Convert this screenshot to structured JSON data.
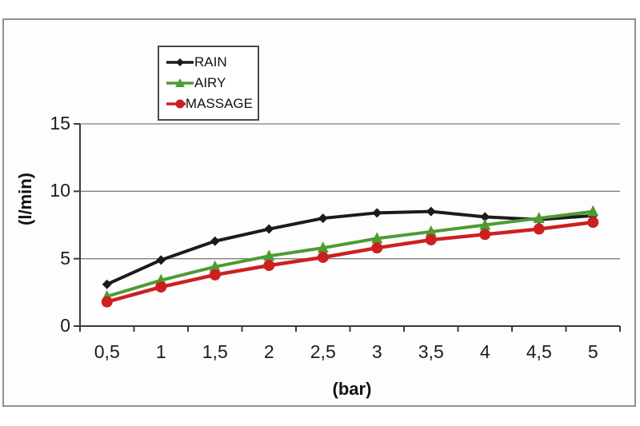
{
  "chart_data": {
    "type": "line",
    "categories": [
      "0,5",
      "1",
      "1,5",
      "2",
      "2,5",
      "3",
      "3,5",
      "4",
      "4,5",
      "5"
    ],
    "series": [
      {
        "name": "RAIN",
        "color": "#1b1b1b",
        "marker": "diamond",
        "values": [
          3.1,
          4.9,
          6.3,
          7.2,
          8.0,
          8.4,
          8.5,
          8.1,
          7.9,
          8.2
        ]
      },
      {
        "name": "AIRY",
        "color": "#4e9b31",
        "marker": "triangle",
        "values": [
          2.2,
          3.4,
          4.4,
          5.2,
          5.8,
          6.5,
          7.0,
          7.5,
          8.0,
          8.5
        ]
      },
      {
        "name": "MASSAGE",
        "color": "#cc2020",
        "marker": "circle",
        "values": [
          1.8,
          2.9,
          3.8,
          4.5,
          5.1,
          5.8,
          6.4,
          6.8,
          7.2,
          7.7
        ]
      }
    ],
    "xlabel": "(bar)",
    "ylabel": "(l/min)",
    "yticks": [
      "0",
      "5",
      "10",
      "15"
    ],
    "ylim": [
      0,
      15
    ],
    "grid": "horizontal",
    "legend_position": "top-left-inside"
  },
  "style": {
    "gridline_color": "#7f7f7f",
    "axis_color": "#3a3a3a",
    "frame_border_color": "#8f8f8f",
    "background": "#ffffff"
  }
}
